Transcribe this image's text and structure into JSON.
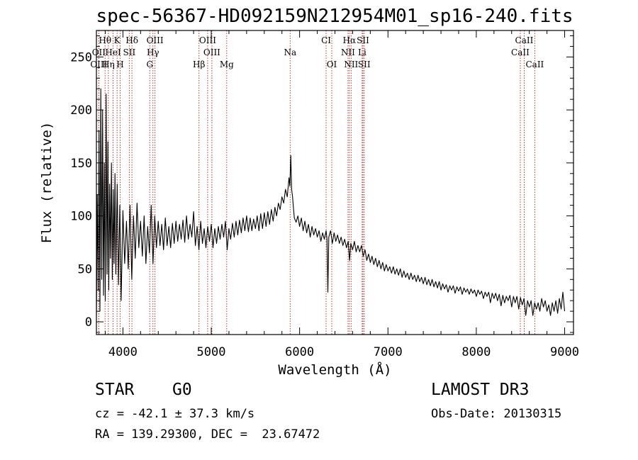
{
  "title": "spec-56367-HD092159N212954M01_sp16-240.fits",
  "info": {
    "object_type": "STAR",
    "object_class": "G0",
    "survey": "LAMOST DR3",
    "cz_line": "cz = -42.1 ± 37.3 km/s",
    "obs_date_line": "Obs-Date: 20130315",
    "radec_line": "RA = 139.29300, DEC =  23.67472"
  },
  "colors": {
    "spectrum": "#000000",
    "line_markers": "#b22222",
    "axes": "#000000"
  },
  "chart_data": {
    "type": "line",
    "title": "spec-56367-HD092159N212954M01_sp16-240.fits",
    "xlabel": "Wavelength (Å)",
    "ylabel": "Flux (relative)",
    "xlim": [
      3700,
      9100
    ],
    "ylim": [
      -12,
      275
    ],
    "x_ticks": [
      4000,
      5000,
      6000,
      7000,
      8000,
      9000
    ],
    "y_ticks": [
      0,
      50,
      100,
      150,
      200,
      250
    ],
    "grid": false,
    "series": [
      {
        "name": "spectrum",
        "points": [
          [
            3700,
            5
          ],
          [
            3710,
            120
          ],
          [
            3720,
            30
          ],
          [
            3730,
            180
          ],
          [
            3740,
            10
          ],
          [
            3750,
            220
          ],
          [
            3760,
            40
          ],
          [
            3770,
            200
          ],
          [
            3780,
            25
          ],
          [
            3790,
            150
          ],
          [
            3800,
            20
          ],
          [
            3810,
            215
          ],
          [
            3820,
            45
          ],
          [
            3830,
            170
          ],
          [
            3840,
            30
          ],
          [
            3850,
            130
          ],
          [
            3860,
            60
          ],
          [
            3870,
            150
          ],
          [
            3880,
            40
          ],
          [
            3890,
            125
          ],
          [
            3900,
            55
          ],
          [
            3910,
            140
          ],
          [
            3920,
            45
          ],
          [
            3935,
            130
          ],
          [
            3950,
            35
          ],
          [
            3965,
            110
          ],
          [
            3980,
            20
          ],
          [
            4000,
            105
          ],
          [
            4020,
            55
          ],
          [
            4040,
            95
          ],
          [
            4060,
            50
          ],
          [
            4080,
            110
          ],
          [
            4100,
            40
          ],
          [
            4120,
            100
          ],
          [
            4140,
            60
          ],
          [
            4160,
            112
          ],
          [
            4180,
            70
          ],
          [
            4200,
            95
          ],
          [
            4220,
            62
          ],
          [
            4240,
            100
          ],
          [
            4260,
            55
          ],
          [
            4280,
            90
          ],
          [
            4300,
            65
          ],
          [
            4320,
            110
          ],
          [
            4340,
            55
          ],
          [
            4360,
            100
          ],
          [
            4380,
            70
          ],
          [
            4400,
            95
          ],
          [
            4420,
            72
          ],
          [
            4440,
            92
          ],
          [
            4460,
            68
          ],
          [
            4480,
            98
          ],
          [
            4500,
            72
          ],
          [
            4520,
            90
          ],
          [
            4540,
            70
          ],
          [
            4560,
            93
          ],
          [
            4580,
            74
          ],
          [
            4600,
            95
          ],
          [
            4620,
            76
          ],
          [
            4640,
            92
          ],
          [
            4660,
            78
          ],
          [
            4680,
            96
          ],
          [
            4700,
            75
          ],
          [
            4720,
            100
          ],
          [
            4740,
            78
          ],
          [
            4760,
            92
          ],
          [
            4780,
            80
          ],
          [
            4800,
            104
          ],
          [
            4820,
            72
          ],
          [
            4840,
            90
          ],
          [
            4860,
            68
          ],
          [
            4880,
            95
          ],
          [
            4900,
            74
          ],
          [
            4920,
            88
          ],
          [
            4940,
            70
          ],
          [
            4960,
            90
          ],
          [
            4980,
            76
          ],
          [
            5000,
            92
          ],
          [
            5020,
            70
          ],
          [
            5040,
            88
          ],
          [
            5060,
            74
          ],
          [
            5080,
            90
          ],
          [
            5100,
            78
          ],
          [
            5120,
            92
          ],
          [
            5140,
            80
          ],
          [
            5160,
            95
          ],
          [
            5180,
            68
          ],
          [
            5200,
            88
          ],
          [
            5220,
            78
          ],
          [
            5240,
            93
          ],
          [
            5260,
            80
          ],
          [
            5280,
            95
          ],
          [
            5300,
            82
          ],
          [
            5320,
            96
          ],
          [
            5340,
            84
          ],
          [
            5360,
            98
          ],
          [
            5380,
            86
          ],
          [
            5400,
            100
          ],
          [
            5420,
            85
          ],
          [
            5440,
            98
          ],
          [
            5460,
            86
          ],
          [
            5480,
            97
          ],
          [
            5500,
            88
          ],
          [
            5520,
            100
          ],
          [
            5540,
            86
          ],
          [
            5560,
            102
          ],
          [
            5580,
            88
          ],
          [
            5600,
            103
          ],
          [
            5620,
            90
          ],
          [
            5640,
            104
          ],
          [
            5660,
            92
          ],
          [
            5680,
            106
          ],
          [
            5700,
            95
          ],
          [
            5720,
            108
          ],
          [
            5740,
            100
          ],
          [
            5760,
            112
          ],
          [
            5780,
            106
          ],
          [
            5800,
            118
          ],
          [
            5820,
            112
          ],
          [
            5840,
            125
          ],
          [
            5860,
            118
          ],
          [
            5880,
            136
          ],
          [
            5890,
            128
          ],
          [
            5900,
            157
          ],
          [
            5910,
            125
          ],
          [
            5920,
            118
          ],
          [
            5930,
            108
          ],
          [
            5940,
            98
          ],
          [
            5960,
            94
          ],
          [
            5980,
            100
          ],
          [
            6000,
            90
          ],
          [
            6020,
            98
          ],
          [
            6040,
            86
          ],
          [
            6060,
            95
          ],
          [
            6080,
            84
          ],
          [
            6100,
            92
          ],
          [
            6120,
            80
          ],
          [
            6140,
            90
          ],
          [
            6160,
            82
          ],
          [
            6180,
            88
          ],
          [
            6200,
            80
          ],
          [
            6220,
            86
          ],
          [
            6240,
            76
          ],
          [
            6260,
            84
          ],
          [
            6280,
            78
          ],
          [
            6300,
            86
          ],
          [
            6310,
            78
          ],
          [
            6320,
            28
          ],
          [
            6330,
            80
          ],
          [
            6350,
            86
          ],
          [
            6370,
            74
          ],
          [
            6390,
            84
          ],
          [
            6410,
            76
          ],
          [
            6430,
            82
          ],
          [
            6450,
            74
          ],
          [
            6470,
            80
          ],
          [
            6490,
            72
          ],
          [
            6510,
            78
          ],
          [
            6530,
            70
          ],
          [
            6550,
            76
          ],
          [
            6565,
            58
          ],
          [
            6580,
            74
          ],
          [
            6600,
            68
          ],
          [
            6620,
            76
          ],
          [
            6640,
            66
          ],
          [
            6660,
            72
          ],
          [
            6680,
            66
          ],
          [
            6700,
            72
          ],
          [
            6720,
            62
          ],
          [
            6740,
            68
          ],
          [
            6760,
            58
          ],
          [
            6780,
            64
          ],
          [
            6800,
            56
          ],
          [
            6820,
            62
          ],
          [
            6840,
            54
          ],
          [
            6860,
            60
          ],
          [
            6880,
            52
          ],
          [
            6900,
            58
          ],
          [
            6920,
            50
          ],
          [
            6940,
            56
          ],
          [
            6960,
            48
          ],
          [
            6980,
            54
          ],
          [
            7000,
            48
          ],
          [
            7020,
            52
          ],
          [
            7040,
            46
          ],
          [
            7060,
            52
          ],
          [
            7080,
            45
          ],
          [
            7100,
            50
          ],
          [
            7120,
            44
          ],
          [
            7140,
            50
          ],
          [
            7160,
            42
          ],
          [
            7180,
            48
          ],
          [
            7200,
            42
          ],
          [
            7220,
            46
          ],
          [
            7240,
            40
          ],
          [
            7260,
            46
          ],
          [
            7280,
            40
          ],
          [
            7300,
            44
          ],
          [
            7320,
            38
          ],
          [
            7340,
            44
          ],
          [
            7360,
            38
          ],
          [
            7380,
            42
          ],
          [
            7400,
            36
          ],
          [
            7420,
            42
          ],
          [
            7440,
            35
          ],
          [
            7460,
            40
          ],
          [
            7480,
            34
          ],
          [
            7500,
            40
          ],
          [
            7520,
            33
          ],
          [
            7540,
            38
          ],
          [
            7560,
            32
          ],
          [
            7580,
            38
          ],
          [
            7600,
            30
          ],
          [
            7620,
            36
          ],
          [
            7640,
            31
          ],
          [
            7660,
            35
          ],
          [
            7680,
            28
          ],
          [
            7700,
            34
          ],
          [
            7720,
            30
          ],
          [
            7740,
            34
          ],
          [
            7760,
            27
          ],
          [
            7780,
            33
          ],
          [
            7800,
            29
          ],
          [
            7820,
            33
          ],
          [
            7840,
            26
          ],
          [
            7860,
            32
          ],
          [
            7880,
            28
          ],
          [
            7900,
            31
          ],
          [
            7920,
            26
          ],
          [
            7940,
            31
          ],
          [
            7960,
            27
          ],
          [
            7980,
            30
          ],
          [
            8000,
            24
          ],
          [
            8020,
            30
          ],
          [
            8040,
            26
          ],
          [
            8060,
            29
          ],
          [
            8080,
            22
          ],
          [
            8100,
            28
          ],
          [
            8120,
            24
          ],
          [
            8140,
            28
          ],
          [
            8160,
            18
          ],
          [
            8180,
            27
          ],
          [
            8200,
            22
          ],
          [
            8220,
            27
          ],
          [
            8240,
            20
          ],
          [
            8260,
            26
          ],
          [
            8280,
            15
          ],
          [
            8300,
            25
          ],
          [
            8320,
            18
          ],
          [
            8340,
            24
          ],
          [
            8360,
            20
          ],
          [
            8380,
            25
          ],
          [
            8400,
            14
          ],
          [
            8420,
            24
          ],
          [
            8440,
            18
          ],
          [
            8460,
            24
          ],
          [
            8480,
            12
          ],
          [
            8500,
            23
          ],
          [
            8520,
            16
          ],
          [
            8540,
            22
          ],
          [
            8560,
            6
          ],
          [
            8580,
            20
          ],
          [
            8600,
            14
          ],
          [
            8620,
            20
          ],
          [
            8640,
            6
          ],
          [
            8660,
            18
          ],
          [
            8680,
            12
          ],
          [
            8700,
            18
          ],
          [
            8720,
            10
          ],
          [
            8740,
            22
          ],
          [
            8760,
            14
          ],
          [
            8780,
            20
          ],
          [
            8800,
            10
          ],
          [
            8820,
            16
          ],
          [
            8840,
            6
          ],
          [
            8860,
            18
          ],
          [
            8880,
            10
          ],
          [
            8900,
            20
          ],
          [
            8920,
            8
          ],
          [
            8940,
            22
          ],
          [
            8960,
            12
          ],
          [
            8980,
            28
          ],
          [
            9000,
            10
          ]
        ]
      }
    ],
    "line_markers": [
      {
        "label": "Hθ",
        "wavelength": 3798,
        "row": 1
      },
      {
        "label": "K",
        "wavelength": 3934,
        "row": 1
      },
      {
        "label": "Hδ",
        "wavelength": 4102,
        "row": 1
      },
      {
        "label": "OIII",
        "wavelength": 4363,
        "row": 1
      },
      {
        "label": "OIII",
        "wavelength": 4959,
        "row": 1
      },
      {
        "label": "CI",
        "wavelength": 6300,
        "row": 1
      },
      {
        "label": "Hα",
        "wavelength": 6563,
        "row": 1
      },
      {
        "label": "SII",
        "wavelength": 6717,
        "row": 1
      },
      {
        "label": "CaII",
        "wavelength": 8542,
        "row": 1
      },
      {
        "label": "OII",
        "wavelength": 3727,
        "row": 2
      },
      {
        "label": "HeI",
        "wavelength": 3889,
        "row": 2
      },
      {
        "label": "SII",
        "wavelength": 4072,
        "row": 2
      },
      {
        "label": "Hγ",
        "wavelength": 4340,
        "row": 2
      },
      {
        "label": "OIII",
        "wavelength": 5007,
        "row": 2
      },
      {
        "label": "Na",
        "wavelength": 5893,
        "row": 2
      },
      {
        "label": "NII",
        "wavelength": 6548,
        "row": 2
      },
      {
        "label": "Li",
        "wavelength": 6708,
        "row": 2
      },
      {
        "label": "CaII",
        "wavelength": 8498,
        "row": 2
      },
      {
        "label": "OIII",
        "wavelength": 3727,
        "row": 3
      },
      {
        "label": "Hη",
        "wavelength": 3835,
        "row": 3
      },
      {
        "label": "H",
        "wavelength": 3969,
        "row": 3
      },
      {
        "label": "G",
        "wavelength": 4304,
        "row": 3
      },
      {
        "label": "Hβ",
        "wavelength": 4861,
        "row": 3
      },
      {
        "label": "Mg",
        "wavelength": 5175,
        "row": 3
      },
      {
        "label": "OI",
        "wavelength": 6364,
        "row": 3
      },
      {
        "label": "NII",
        "wavelength": 6583,
        "row": 3
      },
      {
        "label": "SII",
        "wavelength": 6731,
        "row": 3
      },
      {
        "label": "CaII",
        "wavelength": 8662,
        "row": 3
      }
    ]
  }
}
